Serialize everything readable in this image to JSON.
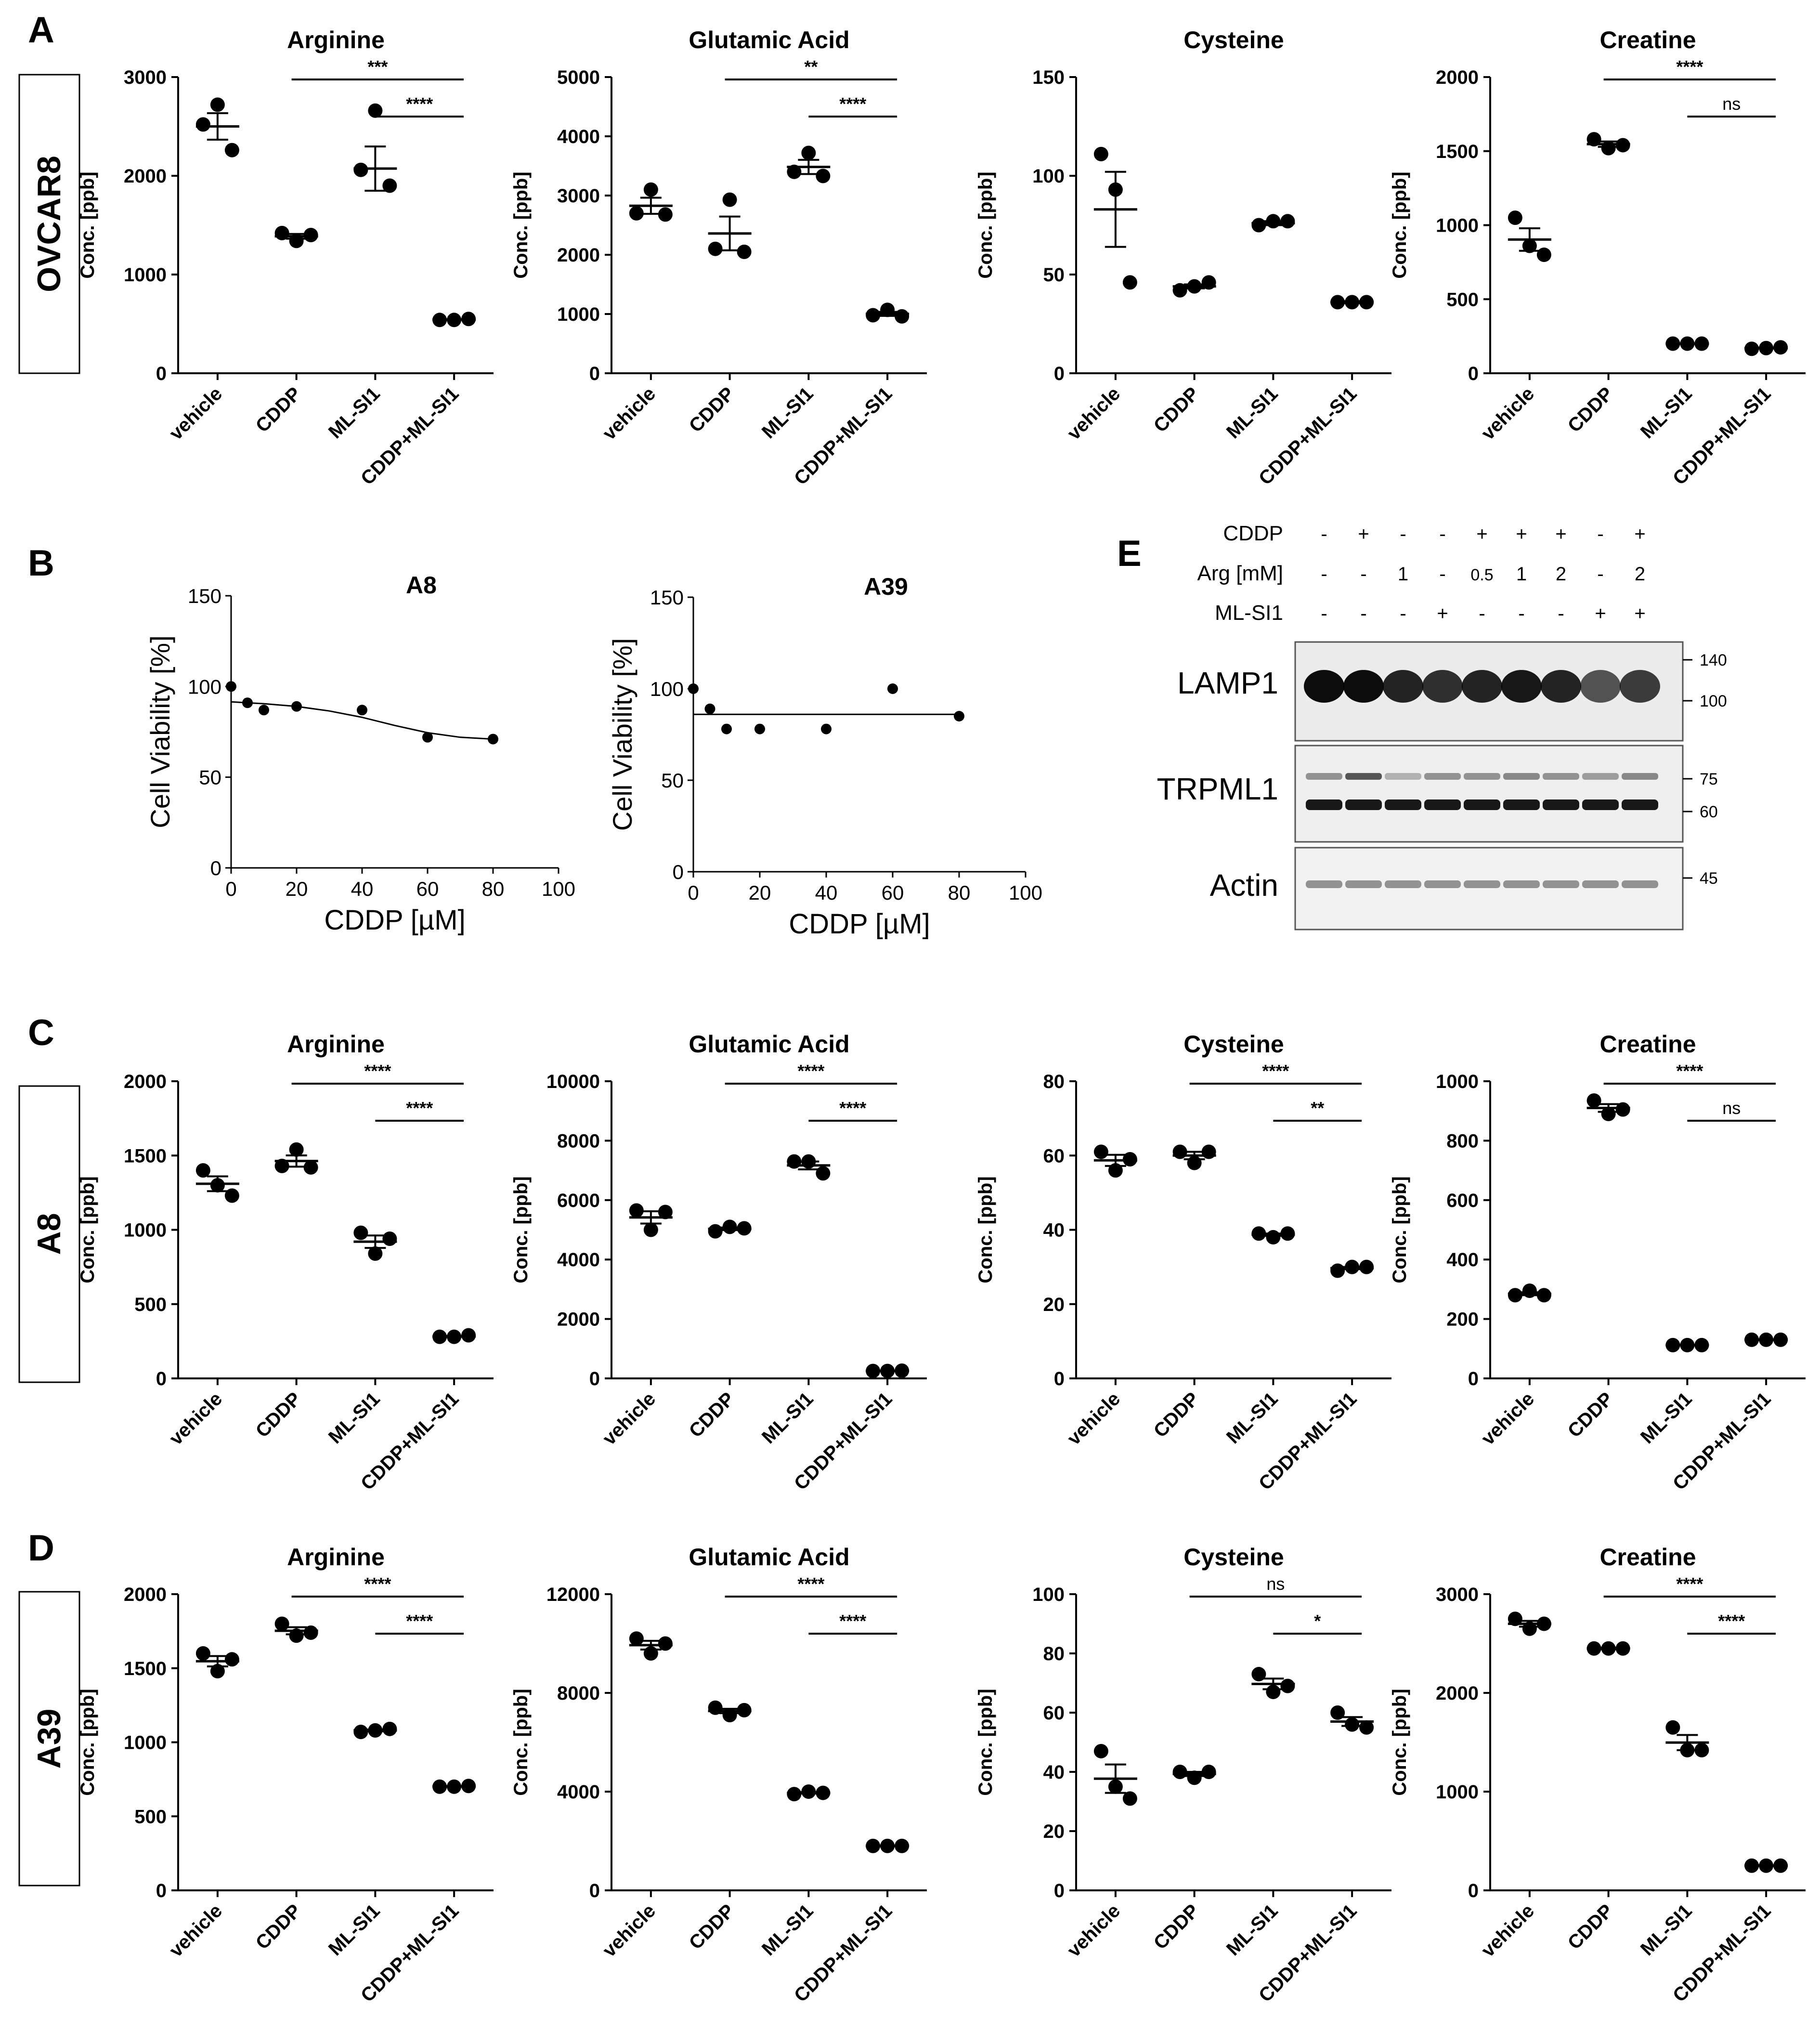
{
  "panel_letters": [
    "A",
    "B",
    "C",
    "D",
    "E"
  ],
  "row_labels": {
    "A": "OVCAR8",
    "C": "A8",
    "D": "A39"
  },
  "groups": [
    "vehicle",
    "CDDP",
    "ML-SI1",
    "CDDP+ML-SI1"
  ],
  "ylabel_conc": "Conc. [ppb]",
  "western": {
    "conditions": [
      {
        "label": "CDDP",
        "values": [
          "-",
          "+",
          "-",
          "-",
          "+",
          "+",
          "+",
          "-",
          "+"
        ]
      },
      {
        "label": "Arg [mM]",
        "values": [
          "-",
          "-",
          "1",
          "-",
          "0.5",
          "1",
          "2",
          "-",
          "2"
        ]
      },
      {
        "label": "ML-SI1",
        "values": [
          "-",
          "-",
          "-",
          "+",
          "-",
          "-",
          "-",
          "+",
          "+"
        ]
      }
    ],
    "blots": [
      {
        "name": "LAMP1",
        "markers": [
          "140",
          "100"
        ]
      },
      {
        "name": "TRPML1",
        "markers": [
          "75",
          "60"
        ]
      },
      {
        "name": "Actin",
        "markers": [
          "45"
        ]
      }
    ]
  },
  "chart_data": [
    {
      "id": "A1",
      "type": "scatter",
      "title": "Arginine",
      "ylabel": "Conc. [ppb]",
      "ylim": [
        0,
        3000
      ],
      "yticks": [
        0,
        1000,
        2000,
        3000
      ],
      "categories": [
        "vehicle",
        "CDDP",
        "ML-SI1",
        "CDDP+ML-SI1"
      ],
      "points": [
        [
          2520,
          2720,
          2260
        ],
        [
          1420,
          1340,
          1400
        ],
        [
          2060,
          2660,
          1900
        ],
        [
          540,
          540,
          550
        ]
      ],
      "mean": [
        2500,
        1387,
        2073,
        543
      ],
      "sem": [
        134,
        24,
        224,
        3
      ],
      "sig": [
        {
          "from": 1,
          "to": 3,
          "label": "***"
        },
        {
          "from": 2,
          "to": 3,
          "label": "****"
        }
      ]
    },
    {
      "id": "A2",
      "type": "scatter",
      "title": "Glutamic Acid",
      "ylabel": "Conc. [ppb]",
      "ylim": [
        0,
        5000
      ],
      "yticks": [
        0,
        1000,
        2000,
        3000,
        4000,
        5000
      ],
      "categories": [
        "vehicle",
        "CDDP",
        "ML-SI1",
        "CDDP+ML-SI1"
      ],
      "points": [
        [
          2700,
          3100,
          2680
        ],
        [
          2100,
          2930,
          2050
        ],
        [
          3400,
          3720,
          3330
        ],
        [
          980,
          1070,
          960
        ]
      ],
      "mean": [
        2827,
        2360,
        3483,
        1003
      ],
      "sem": [
        136,
        285,
        120,
        34
      ],
      "sig": [
        {
          "from": 1,
          "to": 3,
          "label": "**"
        },
        {
          "from": 2,
          "to": 3,
          "label": "****"
        }
      ]
    },
    {
      "id": "A3",
      "type": "scatter",
      "title": "Cysteine",
      "ylabel": "Conc. [ppb]",
      "ylim": [
        0,
        150
      ],
      "yticks": [
        0,
        50,
        100,
        150
      ],
      "categories": [
        "vehicle",
        "CDDP",
        "ML-SI1",
        "CDDP+ML-SI1"
      ],
      "points": [
        [
          111,
          93,
          46
        ],
        [
          42,
          44,
          46
        ],
        [
          75,
          77,
          77
        ],
        [
          36,
          36,
          36
        ]
      ],
      "mean": [
        83,
        44,
        76,
        36
      ],
      "sem": [
        19,
        1,
        1,
        0.5
      ],
      "sig": []
    },
    {
      "id": "A4",
      "type": "scatter",
      "title": "Creatine",
      "ylabel": "Conc. [ppb]",
      "ylim": [
        0,
        2000
      ],
      "yticks": [
        0,
        500,
        1000,
        1500,
        2000
      ],
      "categories": [
        "vehicle",
        "CDDP",
        "ML-SI1",
        "CDDP+ML-SI1"
      ],
      "points": [
        [
          1050,
          860,
          800
        ],
        [
          1580,
          1520,
          1540
        ],
        [
          200,
          200,
          200
        ],
        [
          165,
          170,
          175
        ]
      ],
      "mean": [
        903,
        1547,
        200,
        170
      ],
      "sem": [
        76,
        18,
        2,
        3
      ],
      "sig": [
        {
          "from": 1,
          "to": 3,
          "label": "****"
        },
        {
          "from": 2,
          "to": 3,
          "label": "ns"
        }
      ]
    },
    {
      "id": "B1",
      "type": "line",
      "title": "A8",
      "xlabel": "CDDP [µM]",
      "ylabel": "Cell Viability [%]",
      "xlim": [
        0,
        100
      ],
      "ylim": [
        0,
        150
      ],
      "xticks": [
        0,
        20,
        40,
        60,
        80,
        100
      ],
      "yticks": [
        0,
        50,
        100,
        150
      ],
      "x": [
        0,
        5,
        10,
        20,
        40,
        60,
        80
      ],
      "y": [
        100,
        91,
        87,
        89,
        87,
        72,
        71
      ],
      "fit_x": [
        0,
        10,
        20,
        30,
        40,
        50,
        60,
        70,
        80
      ],
      "fit_y": [
        91.5,
        90.5,
        89,
        86.5,
        83,
        78.5,
        74.5,
        72,
        71
      ]
    },
    {
      "id": "B2",
      "type": "line",
      "title": "A39",
      "xlabel": "CDDP [µM]",
      "ylabel": "Cell Viability [%]",
      "xlim": [
        0,
        100
      ],
      "ylim": [
        0,
        150
      ],
      "xticks": [
        0,
        20,
        40,
        60,
        80,
        100
      ],
      "yticks": [
        0,
        50,
        100,
        150
      ],
      "x": [
        0,
        5,
        10,
        20,
        40,
        60,
        80
      ],
      "y": [
        100,
        89,
        78,
        78,
        78,
        100,
        85
      ],
      "fit_x": [
        0,
        80
      ],
      "fit_y": [
        86,
        86
      ]
    },
    {
      "id": "C1",
      "type": "scatter",
      "title": "Arginine",
      "ylabel": "Conc. [ppb]",
      "ylim": [
        0,
        2000
      ],
      "yticks": [
        0,
        500,
        1000,
        1500,
        2000
      ],
      "categories": [
        "vehicle",
        "CDDP",
        "ML-SI1",
        "CDDP+ML-SI1"
      ],
      "points": [
        [
          1400,
          1300,
          1230
        ],
        [
          1430,
          1540,
          1420
        ],
        [
          980,
          840,
          940
        ],
        [
          280,
          280,
          290
        ]
      ],
      "mean": [
        1310,
        1463,
        920,
        283
      ],
      "sem": [
        50,
        38,
        42,
        3
      ],
      "sig": [
        {
          "from": 1,
          "to": 3,
          "label": "****"
        },
        {
          "from": 2,
          "to": 3,
          "label": "****"
        }
      ]
    },
    {
      "id": "C2",
      "type": "scatter",
      "title": "Glutamic Acid",
      "ylabel": "Conc. [ppb]",
      "ylim": [
        0,
        10000
      ],
      "yticks": [
        0,
        2000,
        4000,
        6000,
        8000,
        10000
      ],
      "categories": [
        "vehicle",
        "CDDP",
        "ML-SI1",
        "CDDP+ML-SI1"
      ],
      "points": [
        [
          5650,
          5000,
          5600
        ],
        [
          4950,
          5100,
          5050
        ],
        [
          7300,
          7300,
          6900
        ],
        [
          250,
          250,
          260
        ]
      ],
      "mean": [
        5417,
        5033,
        7167,
        253
      ],
      "sem": [
        207,
        44,
        133,
        3
      ],
      "sig": [
        {
          "from": 1,
          "to": 3,
          "label": "****"
        },
        {
          "from": 2,
          "to": 3,
          "label": "****"
        }
      ]
    },
    {
      "id": "C3",
      "type": "scatter",
      "title": "Cysteine",
      "ylabel": "Conc. [ppb]",
      "ylim": [
        0,
        80
      ],
      "yticks": [
        0,
        20,
        40,
        60,
        80
      ],
      "categories": [
        "vehicle",
        "CDDP",
        "ML-SI1",
        "CDDP+ML-SI1"
      ],
      "points": [
        [
          61,
          56,
          59
        ],
        [
          61,
          58,
          61
        ],
        [
          39,
          38,
          39
        ],
        [
          29,
          30,
          30
        ]
      ],
      "mean": [
        58.7,
        60,
        38.7,
        29.7
      ],
      "sem": [
        1.5,
        1,
        0.3,
        0.3
      ],
      "sig": [
        {
          "from": 1,
          "to": 3,
          "label": "****"
        },
        {
          "from": 2,
          "to": 3,
          "label": "**"
        }
      ]
    },
    {
      "id": "C4",
      "type": "scatter",
      "title": "Creatine",
      "ylabel": "Conc. [ppb]",
      "ylim": [
        0,
        1000
      ],
      "yticks": [
        0,
        200,
        400,
        600,
        800,
        1000
      ],
      "categories": [
        "vehicle",
        "CDDP",
        "ML-SI1",
        "CDDP+ML-SI1"
      ],
      "points": [
        [
          280,
          295,
          280
        ],
        [
          935,
          890,
          905
        ],
        [
          112,
          112,
          112
        ],
        [
          130,
          130,
          130
        ]
      ],
      "mean": [
        285,
        910,
        112,
        130
      ],
      "sem": [
        5,
        13,
        1,
        1
      ],
      "sig": [
        {
          "from": 1,
          "to": 3,
          "label": "****"
        },
        {
          "from": 2,
          "to": 3,
          "label": "ns"
        }
      ]
    },
    {
      "id": "D1",
      "type": "scatter",
      "title": "Arginine",
      "ylabel": "Conc. [ppb]",
      "ylim": [
        0,
        2000
      ],
      "yticks": [
        0,
        500,
        1000,
        1500,
        2000
      ],
      "categories": [
        "vehicle",
        "CDDP",
        "ML-SI1",
        "CDDP+ML-SI1"
      ],
      "points": [
        [
          1600,
          1480,
          1560
        ],
        [
          1800,
          1720,
          1740
        ],
        [
          1070,
          1080,
          1090
        ],
        [
          700,
          700,
          705
        ]
      ],
      "mean": [
        1547,
        1753,
        1080,
        702
      ],
      "sem": [
        35,
        24,
        6,
        2
      ],
      "sig": [
        {
          "from": 1,
          "to": 3,
          "label": "****"
        },
        {
          "from": 2,
          "to": 3,
          "label": "****"
        }
      ]
    },
    {
      "id": "D2",
      "type": "scatter",
      "title": "Glutamic Acid",
      "ylabel": "Conc. [ppb]",
      "ylim": [
        0,
        12000
      ],
      "yticks": [
        0,
        4000,
        8000,
        12000
      ],
      "categories": [
        "vehicle",
        "CDDP",
        "ML-SI1",
        "CDDP+ML-SI1"
      ],
      "points": [
        [
          10200,
          9600,
          10000
        ],
        [
          7400,
          7100,
          7300
        ],
        [
          3900,
          4000,
          3950
        ],
        [
          1800,
          1800,
          1800
        ]
      ],
      "mean": [
        9933,
        7267,
        3950,
        1800
      ],
      "sem": [
        176,
        88,
        29,
        10
      ],
      "sig": [
        {
          "from": 1,
          "to": 3,
          "label": "****"
        },
        {
          "from": 2,
          "to": 3,
          "label": "****"
        }
      ]
    },
    {
      "id": "D3",
      "type": "scatter",
      "title": "Cysteine",
      "ylabel": "Conc. [ppb]",
      "ylim": [
        0,
        100
      ],
      "yticks": [
        0,
        20,
        40,
        60,
        80,
        100
      ],
      "categories": [
        "vehicle",
        "CDDP",
        "ML-SI1",
        "CDDP+ML-SI1"
      ],
      "points": [
        [
          47,
          35,
          31
        ],
        [
          40,
          38,
          40
        ],
        [
          73,
          67,
          69
        ],
        [
          60,
          56,
          55
        ]
      ],
      "mean": [
        37.7,
        39.3,
        69.7,
        57
      ],
      "sem": [
        4.8,
        0.7,
        1.8,
        1.5
      ],
      "sig": [
        {
          "from": 1,
          "to": 3,
          "label": "ns"
        },
        {
          "from": 2,
          "to": 3,
          "label": "*"
        }
      ]
    },
    {
      "id": "D4",
      "type": "scatter",
      "title": "Creatine",
      "ylabel": "Conc. [ppb]",
      "ylim": [
        0,
        3000
      ],
      "yticks": [
        0,
        1000,
        2000,
        3000
      ],
      "categories": [
        "vehicle",
        "CDDP",
        "ML-SI1",
        "CDDP+ML-SI1"
      ],
      "points": [
        [
          2750,
          2650,
          2700
        ],
        [
          2450,
          2450,
          2450
        ],
        [
          1650,
          1420,
          1420
        ],
        [
          250,
          250,
          250
        ]
      ],
      "mean": [
        2700,
        2450,
        1497,
        250
      ],
      "sem": [
        29,
        8,
        77,
        3
      ],
      "sig": [
        {
          "from": 1,
          "to": 3,
          "label": "****"
        },
        {
          "from": 2,
          "to": 3,
          "label": "****"
        }
      ]
    }
  ]
}
